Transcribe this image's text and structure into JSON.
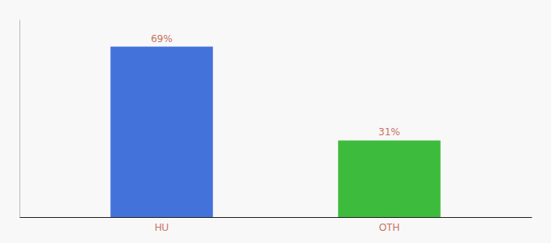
{
  "chart_data": {
    "type": "bar",
    "categories": [
      "HU",
      "OTH"
    ],
    "values": [
      69,
      31
    ],
    "colors": [
      "#4472db",
      "#3dbb3d"
    ],
    "ylim": [
      0,
      80
    ],
    "data_labels": true,
    "value_labels": [
      "69%",
      "31%"
    ],
    "tick_labels": "x",
    "grid": false
  }
}
